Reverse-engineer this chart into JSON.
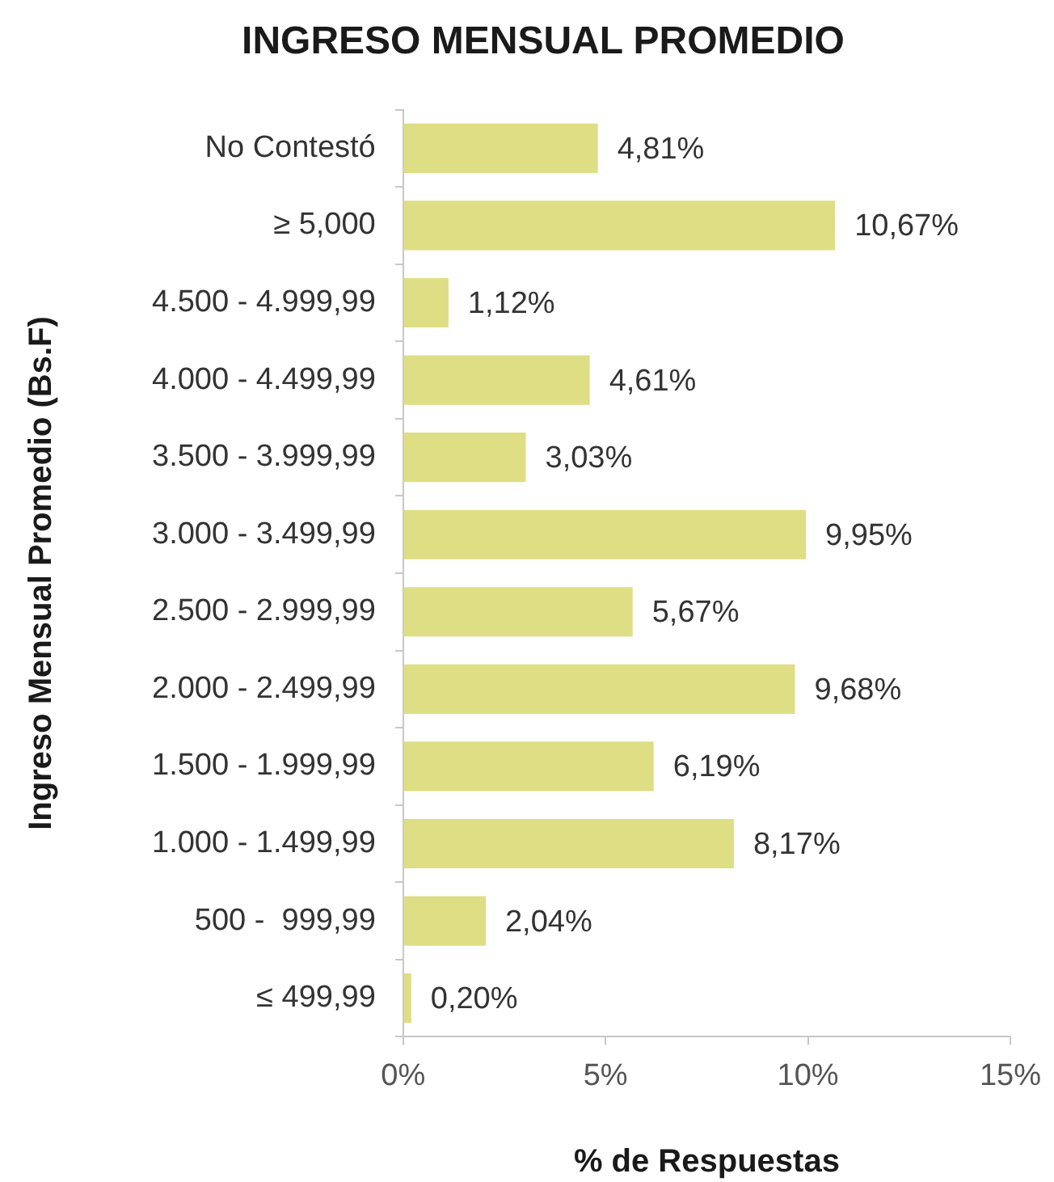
{
  "chart_data": {
    "type": "bar",
    "orientation": "horizontal",
    "title": "INGRESO MENSUAL PROMEDIO",
    "xlabel": "% de Respuestas",
    "ylabel": "Ingreso Mensual Promedio (Bs.F)",
    "categories": [
      "No Contestó",
      "≥ 5,000",
      "4.500 - 4.999,99",
      "4.000 - 4.499,99",
      "3.500 - 3.999,99",
      "3.000 - 3.499,99",
      "2.500 - 2.999,99",
      "2.000 - 2.499,99",
      "1.500 - 1.999,99",
      "1.000 - 1.499,99",
      "500 -  999,99",
      "≤ 499,99"
    ],
    "values": [
      4.81,
      10.67,
      1.12,
      4.61,
      3.03,
      9.95,
      5.67,
      9.68,
      6.19,
      8.17,
      2.04,
      0.2
    ],
    "value_labels": [
      "4,81%",
      "10,67%",
      "1,12%",
      "4,61%",
      "3,03%",
      "9,95%",
      "5,67%",
      "9,68%",
      "6,19%",
      "8,17%",
      "2,04%",
      "0,20%"
    ],
    "color": "#dede84",
    "xlim": [
      0,
      15
    ],
    "xticks": [
      {
        "value": 0,
        "label": "0%"
      },
      {
        "value": 5,
        "label": "5%"
      },
      {
        "value": 10,
        "label": "10%"
      },
      {
        "value": 15,
        "label": "15%"
      }
    ],
    "legend": false
  }
}
